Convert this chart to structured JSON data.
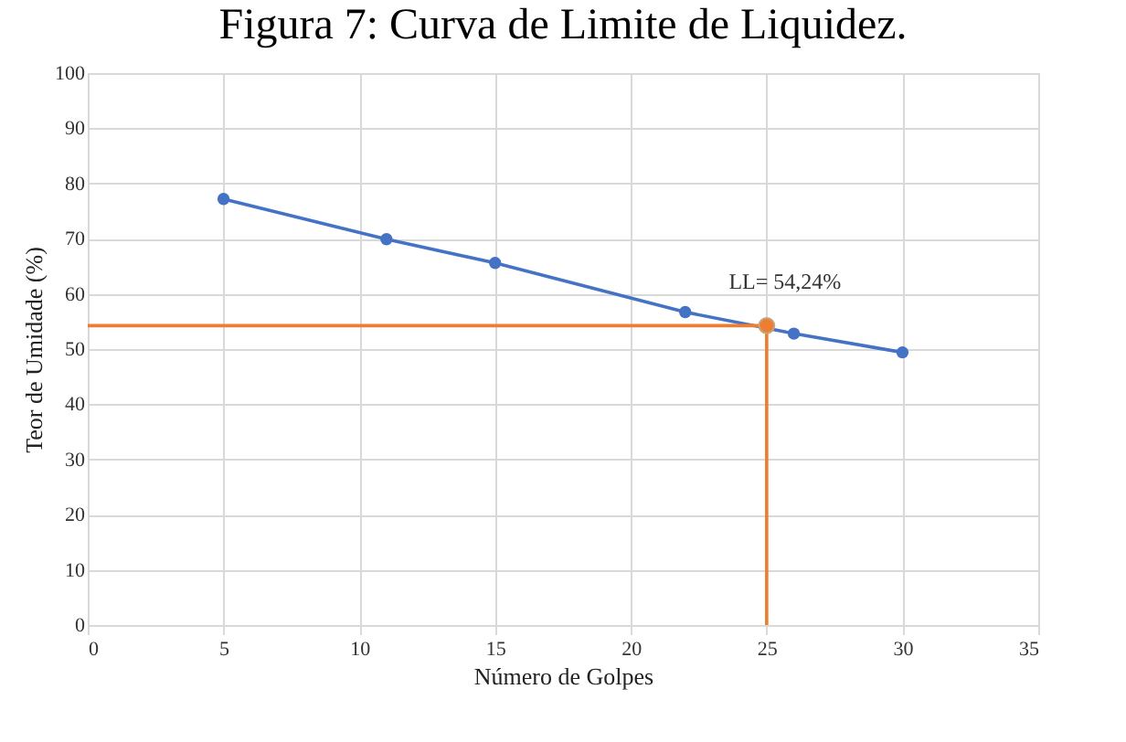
{
  "chart_data": {
    "type": "line",
    "title": "Figura 7: Curva de Limite de Liquidez.",
    "xlabel": "Número de Golpes",
    "ylabel": "Teor de Umidade  (%)",
    "series": [
      {
        "color": "#4472c4",
        "x": [
          5,
          11,
          15,
          22,
          26,
          30
        ],
        "values": [
          77.2,
          69.9,
          65.6,
          56.7,
          52.8,
          49.4
        ],
        "marker": "circle"
      },
      {
        "type": "line",
        "color": "#ed7d31",
        "x": [
          0,
          25,
          25
        ],
        "values": [
          54.24,
          54.24,
          0
        ],
        "marker": "none"
      },
      {
        "type": "scatter",
        "color": "#ed7d31",
        "x": [
          25
        ],
        "values": [
          54.24
        ],
        "marker": "circle"
      }
    ],
    "annotations": [
      {
        "text": "LL= 54,24%",
        "x": 25,
        "y": 54.24
      }
    ],
    "xlim": [
      0,
      35
    ],
    "xticks": [
      0,
      5,
      10,
      15,
      20,
      25,
      30,
      35
    ],
    "ylim": [
      0,
      100
    ],
    "yticks": [
      0,
      10,
      20,
      30,
      40,
      50,
      60,
      70,
      80,
      90,
      100
    ],
    "grid": true
  }
}
